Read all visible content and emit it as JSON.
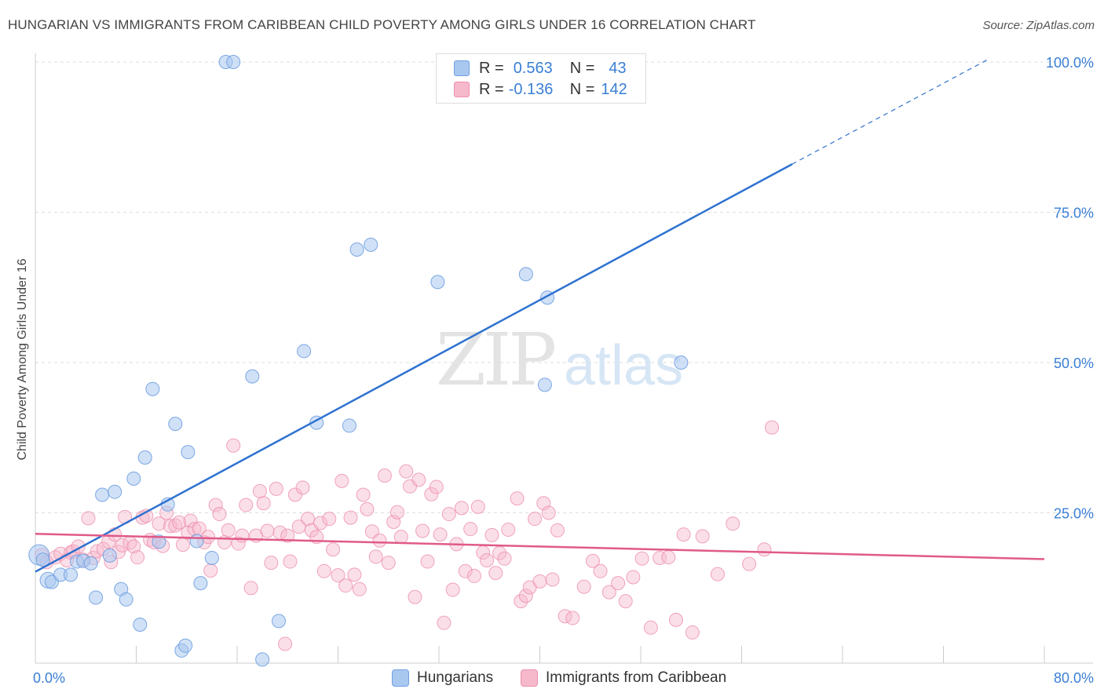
{
  "title": "HUNGARIAN VS IMMIGRANTS FROM CARIBBEAN CHILD POVERTY AMONG GIRLS UNDER 16 CORRELATION CHART",
  "source": "Source: ZipAtlas.com",
  "watermark": {
    "zip": "ZIP",
    "atlas": "atlas"
  },
  "legend": {
    "rows": [
      {
        "r_label": "R =",
        "r_value": "0.563",
        "n_label": "N =",
        "n_value": "43"
      },
      {
        "r_label": "R =",
        "r_value": "-0.136",
        "n_label": "N =",
        "n_value": "142"
      }
    ]
  },
  "bottom_legend": {
    "series1": "Hungarians",
    "series2": "Immigrants from Caribbean"
  },
  "colors": {
    "blue_fill": "#a9c8f0",
    "blue_stroke": "#6f9fe0",
    "blue_line": "#2f72d0",
    "pink_fill": "#f6b9cc",
    "pink_stroke": "#ec8fad",
    "pink_line": "#e05a8a",
    "axis_text": "#3a7fd5",
    "grid": "#dddddd"
  },
  "chart_data": {
    "type": "scatter",
    "title": "HUNGARIAN VS IMMIGRANTS FROM CARIBBEAN CHILD POVERTY AMONG GIRLS UNDER 16 CORRELATION CHART",
    "xlabel": "",
    "ylabel": "Child Poverty Among Girls Under 16",
    "xlim": [
      0,
      80
    ],
    "ylim": [
      0,
      100
    ],
    "x_tick_labels": [
      "0.0%",
      "80.0%"
    ],
    "y_tick_labels": [
      "25.0%",
      "50.0%",
      "75.0%",
      "100.0%"
    ],
    "y_ticks": [
      25,
      50,
      75,
      100
    ],
    "grid": true,
    "legend_position": "top-center",
    "series": [
      {
        "name": "Hungarians",
        "r": 0.563,
        "n": 43,
        "trend": {
          "x0": 0,
          "y0": 15.2,
          "x1": 60,
          "y1": 83,
          "dash_to_x": 75.6,
          "dash_to_y": 100.5
        },
        "points": [
          [
            0.3,
            18.0
          ],
          [
            0.6,
            17.2
          ],
          [
            1.0,
            13.8
          ],
          [
            1.3,
            13.5
          ],
          [
            2.0,
            14.7
          ],
          [
            2.8,
            14.7
          ],
          [
            3.3,
            16.9
          ],
          [
            3.8,
            17.0
          ],
          [
            4.4,
            16.6
          ],
          [
            4.8,
            10.9
          ],
          [
            5.3,
            28.0
          ],
          [
            5.9,
            17.9
          ],
          [
            6.3,
            28.5
          ],
          [
            6.8,
            12.3
          ],
          [
            7.2,
            10.6
          ],
          [
            7.8,
            30.7
          ],
          [
            8.3,
            6.4
          ],
          [
            8.7,
            34.2
          ],
          [
            9.3,
            45.6
          ],
          [
            9.8,
            20.2
          ],
          [
            10.5,
            26.4
          ],
          [
            11.1,
            39.8
          ],
          [
            11.6,
            2.1
          ],
          [
            11.9,
            2.9
          ],
          [
            12.1,
            35.1
          ],
          [
            12.8,
            20.3
          ],
          [
            13.1,
            13.3
          ],
          [
            14.0,
            17.5
          ],
          [
            15.1,
            100.0
          ],
          [
            15.7,
            100.0
          ],
          [
            17.2,
            47.7
          ],
          [
            18.0,
            0.6
          ],
          [
            19.3,
            7.0
          ],
          [
            21.3,
            51.9
          ],
          [
            22.3,
            40.0
          ],
          [
            24.9,
            39.5
          ],
          [
            25.5,
            68.8
          ],
          [
            26.6,
            69.6
          ],
          [
            31.9,
            63.4
          ],
          [
            38.9,
            64.7
          ],
          [
            40.4,
            46.3
          ],
          [
            40.6,
            60.8
          ],
          [
            51.2,
            50.0
          ]
        ]
      },
      {
        "name": "Immigrants from Caribbean",
        "r": -0.136,
        "n": 142,
        "trend": {
          "x0": 0,
          "y0": 21.5,
          "x1": 80,
          "y1": 17.3
        },
        "points": [
          [
            0.5,
            18.0
          ],
          [
            0.9,
            16.8
          ],
          [
            1.6,
            17.6
          ],
          [
            2.0,
            18.2
          ],
          [
            2.5,
            17.1
          ],
          [
            2.8,
            18.4
          ],
          [
            3.0,
            18.6
          ],
          [
            3.4,
            19.4
          ],
          [
            3.8,
            17.2
          ],
          [
            4.2,
            24.1
          ],
          [
            4.6,
            17.5
          ],
          [
            4.9,
            18.6
          ],
          [
            5.4,
            19.0
          ],
          [
            5.8,
            20.2
          ],
          [
            6.0,
            16.8
          ],
          [
            6.3,
            21.4
          ],
          [
            6.6,
            18.5
          ],
          [
            6.9,
            19.6
          ],
          [
            7.1,
            24.3
          ],
          [
            7.5,
            20.0
          ],
          [
            7.8,
            19.4
          ],
          [
            8.1,
            17.6
          ],
          [
            8.5,
            24.2
          ],
          [
            8.8,
            24.5
          ],
          [
            9.1,
            20.5
          ],
          [
            9.4,
            20.1
          ],
          [
            9.8,
            23.2
          ],
          [
            10.1,
            19.5
          ],
          [
            10.4,
            25.0
          ],
          [
            10.7,
            22.8
          ],
          [
            11.1,
            22.9
          ],
          [
            11.4,
            23.4
          ],
          [
            11.7,
            19.7
          ],
          [
            12.1,
            21.7
          ],
          [
            12.3,
            23.7
          ],
          [
            12.6,
            22.3
          ],
          [
            13.0,
            22.4
          ],
          [
            13.4,
            20.1
          ],
          [
            13.7,
            21.0
          ],
          [
            13.9,
            15.4
          ],
          [
            14.3,
            26.3
          ],
          [
            14.6,
            24.8
          ],
          [
            15.0,
            20.1
          ],
          [
            15.3,
            22.1
          ],
          [
            15.7,
            36.2
          ],
          [
            16.1,
            19.9
          ],
          [
            16.4,
            21.2
          ],
          [
            16.7,
            26.3
          ],
          [
            17.1,
            12.5
          ],
          [
            17.5,
            21.2
          ],
          [
            17.8,
            28.6
          ],
          [
            18.1,
            26.6
          ],
          [
            18.4,
            22.0
          ],
          [
            18.7,
            16.7
          ],
          [
            19.1,
            29.0
          ],
          [
            19.4,
            21.7
          ],
          [
            19.8,
            3.2
          ],
          [
            20.0,
            21.2
          ],
          [
            20.2,
            16.9
          ],
          [
            20.6,
            28.0
          ],
          [
            20.9,
            22.7
          ],
          [
            21.2,
            29.2
          ],
          [
            21.6,
            24.0
          ],
          [
            21.9,
            22.1
          ],
          [
            22.3,
            21.0
          ],
          [
            22.6,
            23.3
          ],
          [
            22.9,
            15.3
          ],
          [
            23.3,
            24.0
          ],
          [
            23.6,
            18.9
          ],
          [
            24.0,
            14.6
          ],
          [
            24.3,
            30.3
          ],
          [
            24.6,
            12.9
          ],
          [
            25.0,
            24.2
          ],
          [
            25.3,
            14.7
          ],
          [
            25.7,
            12.3
          ],
          [
            26.0,
            28.0
          ],
          [
            26.3,
            25.6
          ],
          [
            26.7,
            21.9
          ],
          [
            27.0,
            17.7
          ],
          [
            27.3,
            20.4
          ],
          [
            27.7,
            31.2
          ],
          [
            28.0,
            16.7
          ],
          [
            28.4,
            23.5
          ],
          [
            28.7,
            25.1
          ],
          [
            29.0,
            21.0
          ],
          [
            29.4,
            31.9
          ],
          [
            29.7,
            29.4
          ],
          [
            30.1,
            11.0
          ],
          [
            30.4,
            30.5
          ],
          [
            30.7,
            22.0
          ],
          [
            31.1,
            16.9
          ],
          [
            31.4,
            28.1
          ],
          [
            31.8,
            29.3
          ],
          [
            32.1,
            21.4
          ],
          [
            32.4,
            6.7
          ],
          [
            32.8,
            24.8
          ],
          [
            33.1,
            12.2
          ],
          [
            33.4,
            19.8
          ],
          [
            33.8,
            25.8
          ],
          [
            34.1,
            15.3
          ],
          [
            34.5,
            22.3
          ],
          [
            34.8,
            14.5
          ],
          [
            35.1,
            26.0
          ],
          [
            35.5,
            18.4
          ],
          [
            35.8,
            17.1
          ],
          [
            36.2,
            21.3
          ],
          [
            36.5,
            15.0
          ],
          [
            36.8,
            18.3
          ],
          [
            37.2,
            17.4
          ],
          [
            37.5,
            22.2
          ],
          [
            38.2,
            27.4
          ],
          [
            38.5,
            10.3
          ],
          [
            38.9,
            11.2
          ],
          [
            39.2,
            12.6
          ],
          [
            39.6,
            24.0
          ],
          [
            40.0,
            13.6
          ],
          [
            40.3,
            26.6
          ],
          [
            40.7,
            25.0
          ],
          [
            41.0,
            13.9
          ],
          [
            41.4,
            22.1
          ],
          [
            42.0,
            7.8
          ],
          [
            42.6,
            7.5
          ],
          [
            43.5,
            12.7
          ],
          [
            44.2,
            17.0
          ],
          [
            44.8,
            15.3
          ],
          [
            45.5,
            11.8
          ],
          [
            46.2,
            13.3
          ],
          [
            46.8,
            10.3
          ],
          [
            47.4,
            14.3
          ],
          [
            48.1,
            17.4
          ],
          [
            48.8,
            5.9
          ],
          [
            49.5,
            17.5
          ],
          [
            50.2,
            17.6
          ],
          [
            50.8,
            7.2
          ],
          [
            51.4,
            21.4
          ],
          [
            52.1,
            5.1
          ],
          [
            52.9,
            21.1
          ],
          [
            54.1,
            14.8
          ],
          [
            55.3,
            23.2
          ],
          [
            56.6,
            16.5
          ],
          [
            57.8,
            18.9
          ],
          [
            58.4,
            39.2
          ]
        ]
      }
    ]
  }
}
